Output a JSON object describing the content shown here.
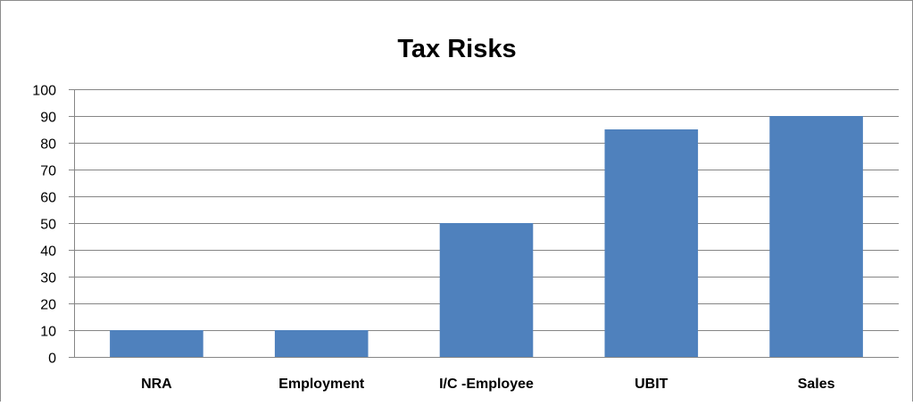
{
  "chart_data": {
    "type": "bar",
    "title": "Tax Risks",
    "xlabel": "",
    "ylabel": "",
    "categories": [
      "NRA",
      "Employment",
      "I/C -Employee",
      "UBIT",
      "Sales"
    ],
    "values": [
      10,
      10,
      50,
      85,
      90
    ],
    "ylim": [
      0,
      100
    ],
    "ytick_step": 10,
    "grid": true,
    "legend": "none",
    "bar_color": "#4f81bd",
    "gridline_color": "#868686"
  }
}
